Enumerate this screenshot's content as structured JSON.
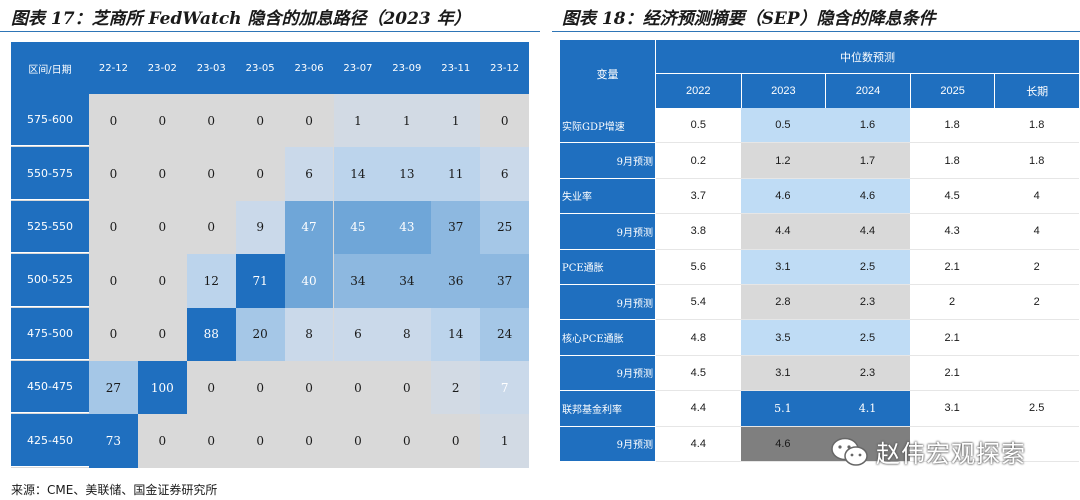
{
  "left": {
    "title": "图表 17：芝商所 FedWatch 隐含的加息路径（2023 年）"
  },
  "right": {
    "title": "图表 18：经济预测摘要（SEP）隐含的降息条件"
  },
  "source": "来源：CME、美联储、国金证券研究所",
  "watermark": "赵伟宏观探索",
  "colors": {
    "header": "#1f6fbf",
    "background": "#d9d9d9",
    "highlight_light": "#bfdcf5",
    "highlight_dark": "#1f6fbf",
    "gray_dark": "#7f7f7f"
  },
  "chart_data": [
    {
      "type": "heatmap",
      "corner_label": "区间/日期",
      "columns": [
        "22-12",
        "23-02",
        "23-03",
        "23-05",
        "23-06",
        "23-07",
        "23-09",
        "23-11",
        "23-12"
      ],
      "rows": [
        "575-600",
        "550-575",
        "525-550",
        "500-525",
        "475-500",
        "450-475",
        "425-450"
      ],
      "values": [
        [
          0,
          0,
          0,
          0,
          0,
          1,
          1,
          1,
          0
        ],
        [
          0,
          0,
          0,
          0,
          6,
          14,
          13,
          11,
          6
        ],
        [
          0,
          0,
          0,
          9,
          47,
          45,
          43,
          37,
          25
        ],
        [
          0,
          0,
          12,
          71,
          40,
          34,
          34,
          36,
          37
        ],
        [
          0,
          0,
          88,
          20,
          8,
          6,
          8,
          14,
          24
        ],
        [
          27,
          100,
          0,
          0,
          0,
          0,
          0,
          2,
          7
        ],
        [
          73,
          0,
          0,
          0,
          0,
          0,
          0,
          0,
          1
        ]
      ]
    },
    {
      "type": "table",
      "row_header": "变量",
      "group_header": "中位数预测",
      "columns": [
        "2022",
        "2023",
        "2024",
        "2025",
        "长期"
      ],
      "rows": [
        {
          "label": "实际GDP增速",
          "sub": false,
          "values": [
            "0.5",
            "0.5",
            "1.6",
            "1.8",
            "1.8"
          ]
        },
        {
          "label": "9月预测",
          "sub": true,
          "values": [
            "0.2",
            "1.2",
            "1.7",
            "1.8",
            "1.8"
          ]
        },
        {
          "label": "失业率",
          "sub": false,
          "values": [
            "3.7",
            "4.6",
            "4.6",
            "4.5",
            "4"
          ]
        },
        {
          "label": "9月预测",
          "sub": true,
          "values": [
            "3.8",
            "4.4",
            "4.4",
            "4.3",
            "4"
          ]
        },
        {
          "label": "PCE通胀",
          "sub": false,
          "values": [
            "5.6",
            "3.1",
            "2.5",
            "2.1",
            "2"
          ]
        },
        {
          "label": "9月预测",
          "sub": true,
          "values": [
            "5.4",
            "2.8",
            "2.3",
            "2",
            "2"
          ]
        },
        {
          "label": "核心PCE通胀",
          "sub": false,
          "values": [
            "4.8",
            "3.5",
            "2.5",
            "2.1",
            ""
          ]
        },
        {
          "label": "9月预测",
          "sub": true,
          "values": [
            "4.5",
            "3.1",
            "2.3",
            "2.1",
            ""
          ]
        },
        {
          "label": "联邦基金利率",
          "sub": false,
          "values": [
            "4.4",
            "5.1",
            "4.1",
            "3.1",
            "2.5"
          ]
        },
        {
          "label": "9月预测",
          "sub": true,
          "values": [
            "4.4",
            "4.6",
            "",
            "",
            ""
          ]
        }
      ]
    }
  ]
}
